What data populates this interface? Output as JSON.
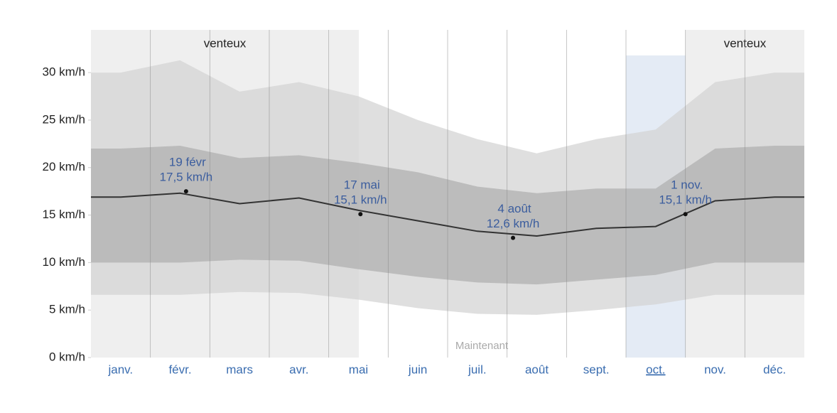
{
  "chart_data": {
    "type": "band",
    "categories": [
      "janv.",
      "févr.",
      "mars",
      "avr.",
      "mai",
      "juin",
      "juil.",
      "août",
      "sept.",
      "oct.",
      "nov.",
      "déc."
    ],
    "series": [
      {
        "color": "#d4d4d4",
        "values": [
          30,
          31.3,
          28,
          29,
          27.5,
          25,
          23,
          21.5,
          23,
          24,
          29,
          30
        ]
      },
      {
        "color": "#b0b0b0",
        "values": [
          22,
          22.3,
          21,
          21.3,
          20.5,
          19.5,
          18,
          17.3,
          17.8,
          17.8,
          22,
          22.3
        ]
      },
      {
        "color": "#333333",
        "values": [
          16.9,
          17.3,
          16.2,
          16.8,
          15.5,
          14.4,
          13.3,
          12.8,
          13.6,
          13.8,
          16.5,
          16.9
        ]
      },
      {
        "color": "#b0b0b0",
        "values": [
          10,
          10,
          10.3,
          10.2,
          9.3,
          8.5,
          7.9,
          7.7,
          8.2,
          8.7,
          10,
          10
        ]
      },
      {
        "color": "#d4d4d4",
        "values": [
          6.6,
          6.6,
          6.9,
          6.8,
          6.1,
          5.2,
          4.6,
          4.5,
          5,
          5.6,
          6.6,
          6.6
        ]
      }
    ],
    "ylim": [
      0,
      34.5
    ],
    "yticks": [
      {
        "value": 0,
        "label": "0 km/h"
      },
      {
        "value": 5,
        "label": "5 km/h"
      },
      {
        "value": 10,
        "label": "10 km/h"
      },
      {
        "value": 15,
        "label": "15 km/h"
      },
      {
        "value": 20,
        "label": "20 km/h"
      },
      {
        "value": 25,
        "label": "25 km/h"
      },
      {
        "value": 30,
        "label": "30 km/h"
      }
    ],
    "grid": true,
    "annotations": [
      {
        "date": "19 févr",
        "value": 17.5,
        "value_label": "17,5 km/h"
      },
      {
        "date": "17 mai",
        "value": 15.1,
        "value_label": "15,1 km/h"
      },
      {
        "date": "4 août",
        "value": 12.6,
        "value_label": "12,6 km/h"
      },
      {
        "date": "1 nov.",
        "value": 15.1,
        "value_label": "15,1 km/h"
      }
    ],
    "zones": [
      "venteux",
      "venteux"
    ],
    "now_label": "Maintenant"
  }
}
